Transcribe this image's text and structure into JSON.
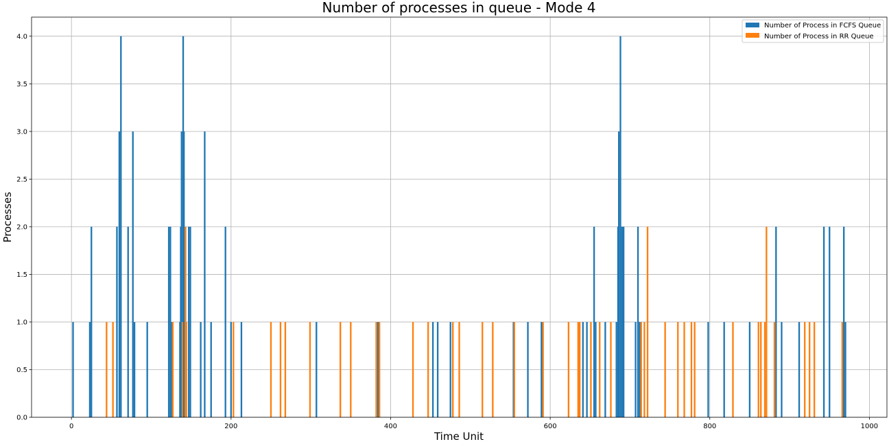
{
  "chart_data": {
    "type": "bar",
    "title": "Number of processes in queue - Mode 4",
    "xlabel": "Time Unit",
    "ylabel": "Processes",
    "xlim": [
      -50,
      1022
    ],
    "ylim": [
      0,
      4.2
    ],
    "xticks": [
      0,
      200,
      400,
      600,
      800,
      1000
    ],
    "xtick_labels": [
      "0",
      "200",
      "400",
      "600",
      "800",
      "1000"
    ],
    "yticks": [
      0.0,
      0.5,
      1.0,
      1.5,
      2.0,
      2.5,
      3.0,
      3.5,
      4.0
    ],
    "ytick_labels": [
      "0.0",
      "0.5",
      "1.0",
      "1.5",
      "2.0",
      "2.5",
      "3.0",
      "3.5",
      "4.0"
    ],
    "grid": true,
    "legend_position": "top-right",
    "bar_width": 2,
    "series": [
      {
        "name": "Number of Process in FCFS Queue",
        "color": "#1f77b4",
        "points": [
          [
            2,
            1
          ],
          [
            23,
            1
          ],
          [
            25,
            2
          ],
          [
            57,
            2
          ],
          [
            60,
            3
          ],
          [
            62,
            4
          ],
          [
            71,
            2
          ],
          [
            77,
            3
          ],
          [
            79,
            1
          ],
          [
            95,
            1
          ],
          [
            122,
            2
          ],
          [
            124,
            2
          ],
          [
            126,
            1
          ],
          [
            136,
            1
          ],
          [
            137,
            2
          ],
          [
            138,
            3
          ],
          [
            140,
            4
          ],
          [
            141,
            3
          ],
          [
            147,
            2
          ],
          [
            149,
            2
          ],
          [
            162,
            1
          ],
          [
            167,
            3
          ],
          [
            175,
            1
          ],
          [
            193,
            2
          ],
          [
            200,
            1
          ],
          [
            213,
            1
          ],
          [
            307,
            1
          ],
          [
            384,
            1
          ],
          [
            453,
            1
          ],
          [
            459,
            1
          ],
          [
            475,
            1
          ],
          [
            554,
            1
          ],
          [
            572,
            1
          ],
          [
            589,
            1
          ],
          [
            641,
            1
          ],
          [
            646,
            1
          ],
          [
            655,
            2
          ],
          [
            657,
            1
          ],
          [
            669,
            1
          ],
          [
            683,
            1
          ],
          [
            685,
            2
          ],
          [
            686,
            3
          ],
          [
            688,
            4
          ],
          [
            690,
            2
          ],
          [
            692,
            2
          ],
          [
            707,
            1
          ],
          [
            710,
            2
          ],
          [
            712,
            1
          ],
          [
            798,
            1
          ],
          [
            818,
            1
          ],
          [
            850,
            1
          ],
          [
            883,
            2
          ],
          [
            890,
            1
          ],
          [
            912,
            1
          ],
          [
            943,
            2
          ],
          [
            950,
            2
          ],
          [
            968,
            2
          ],
          [
            970,
            1
          ]
        ]
      },
      {
        "name": "Number of Process in RR Queue",
        "color": "#ff7f0e",
        "points": [
          [
            44,
            1
          ],
          [
            52,
            1
          ],
          [
            127,
            1
          ],
          [
            139,
            1
          ],
          [
            143,
            2
          ],
          [
            144,
            1
          ],
          [
            203,
            1
          ],
          [
            250,
            1
          ],
          [
            262,
            1
          ],
          [
            268,
            1
          ],
          [
            299,
            1
          ],
          [
            337,
            1
          ],
          [
            350,
            1
          ],
          [
            382,
            1
          ],
          [
            386,
            1
          ],
          [
            428,
            1
          ],
          [
            447,
            1
          ],
          [
            478,
            1
          ],
          [
            486,
            1
          ],
          [
            515,
            1
          ],
          [
            528,
            1
          ],
          [
            555,
            1
          ],
          [
            591,
            1
          ],
          [
            623,
            1
          ],
          [
            635,
            1
          ],
          [
            637,
            1
          ],
          [
            651,
            1
          ],
          [
            662,
            1
          ],
          [
            676,
            1
          ],
          [
            714,
            1
          ],
          [
            718,
            1
          ],
          [
            722,
            2
          ],
          [
            744,
            1
          ],
          [
            760,
            1
          ],
          [
            768,
            1
          ],
          [
            777,
            1
          ],
          [
            781,
            1
          ],
          [
            829,
            1
          ],
          [
            861,
            1
          ],
          [
            864,
            1
          ],
          [
            869,
            1
          ],
          [
            871,
            2
          ],
          [
            881,
            1
          ],
          [
            919,
            1
          ],
          [
            925,
            1
          ],
          [
            931,
            1
          ],
          [
            966,
            1
          ]
        ]
      }
    ]
  }
}
